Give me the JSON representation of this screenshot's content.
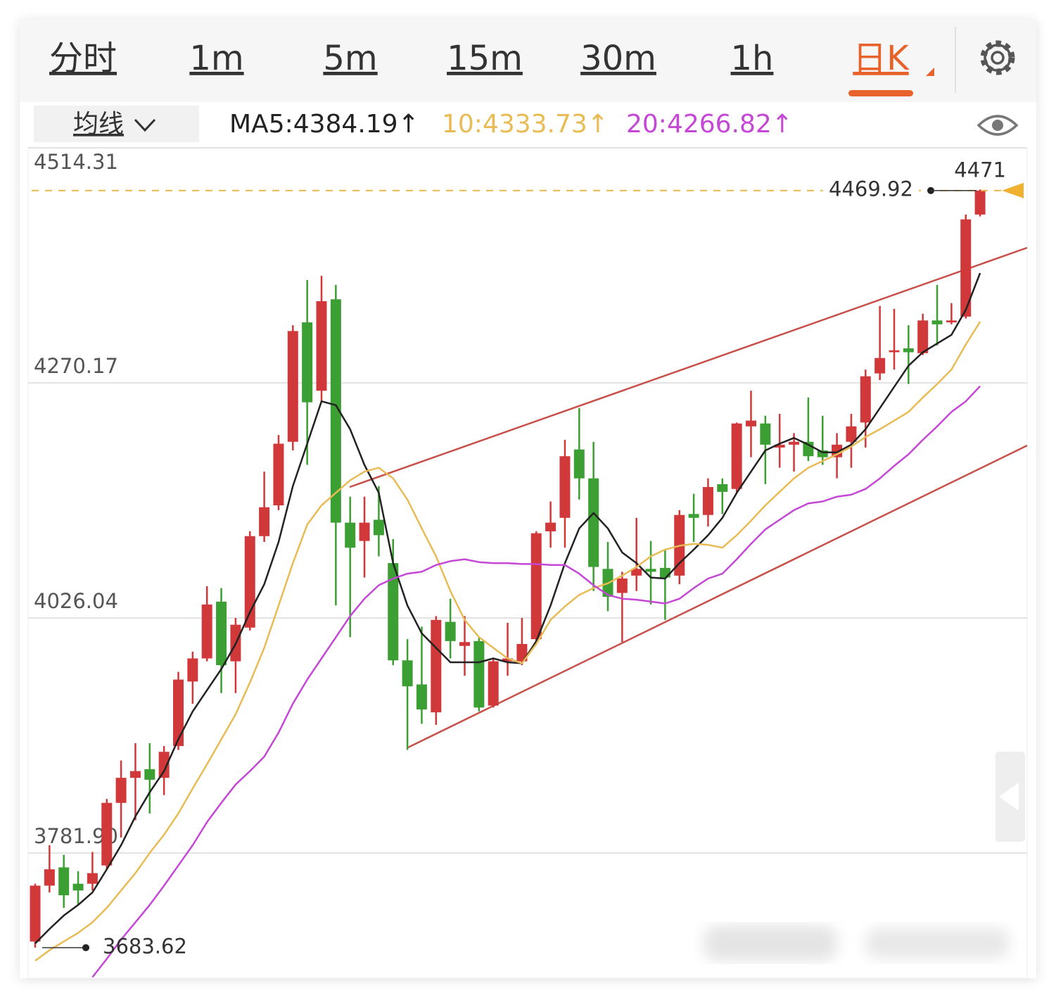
{
  "tabs": [
    "分时",
    "1m",
    "5m",
    "15m",
    "30m",
    "1h",
    "日K"
  ],
  "active_tab": 6,
  "ma_selector": "均线",
  "chart_data": {
    "type": "candlestick",
    "ylim": [
      3651.8,
      4514.31
    ],
    "yticks": [
      4514.31,
      4270.17,
      4026.04,
      {
        "value": 3781.9,
        "label": "3781.90"
      }
    ],
    "grid": true,
    "up_color": "#d0383a",
    "down_color": "#3c9f33",
    "open": [
      3690,
      3748,
      3767,
      3750,
      3750,
      3769,
      3834,
      3860,
      3869,
      3860,
      3893,
      3960,
      3984,
      4043,
      3981,
      4016,
      4111,
      4143,
      4209,
      4333,
      4262,
      4357,
      4125,
      4106,
      4128,
      4083,
      3982,
      3957,
      3928,
      4022,
      3997,
      4002,
      3935,
      3981,
      3981,
      4004,
      4116,
      4130,
      4201,
      4171,
      4077,
      4052,
      4070,
      4077,
      4078,
      4070,
      4134,
      4133,
      4165,
      4160,
      4225,
      4228,
      4203,
      4206,
      4209,
      4200,
      4193,
      4209,
      4229,
      4280,
      4302,
      4306,
      4301,
      4335,
      4333,
      4339,
      4445
    ],
    "high": [
      3750,
      3790,
      3780,
      3763,
      3783,
      3838,
      3878,
      3896,
      3896,
      3893,
      3970,
      3991,
      4059,
      4057,
      4026,
      4116,
      4178,
      4216,
      4330,
      4377,
      4381.42,
      4372,
      4152,
      4152,
      4163,
      4108,
      4004,
      4017,
      4028,
      4046,
      4028,
      4006,
      3984,
      4021,
      4026,
      4116,
      4147,
      4211,
      4244,
      4209,
      4105,
      4074,
      4130,
      4106,
      4097,
      4138,
      4155,
      4171,
      4171,
      4229,
      4262,
      4236,
      4238,
      4218,
      4255,
      4236,
      4218,
      4238,
      4284,
      4350,
      4347,
      4330,
      4342,
      4372,
      4353,
      4445,
      4471
    ],
    "low": [
      3683.62,
      3741,
      3725,
      3728,
      3743,
      3765,
      3798,
      3816,
      3823,
      3842,
      3889,
      3937,
      3981,
      3948,
      3948,
      4013,
      4105,
      4138,
      4200,
      4185,
      4251,
      4039,
      4006,
      4068,
      4090,
      3977,
      3889,
      3916,
      3915,
      3984,
      3966,
      3929,
      3933,
      3966,
      3977,
      4001,
      4099,
      4099,
      4149,
      4054,
      4033,
      4001,
      4054,
      4040,
      4024,
      4061,
      4105,
      4121,
      4134,
      4156,
      4193,
      4165,
      4182,
      4178,
      4189,
      4185,
      4171,
      4182,
      4203,
      4273,
      4284,
      4269,
      4299,
      4309,
      4331,
      4337,
      4443
    ],
    "close": [
      3748,
      3765,
      3738,
      3743,
      3761,
      3834,
      3860,
      3867,
      3858,
      3887,
      3962,
      3984,
      4040,
      3977,
      4019,
      4111,
      4141,
      4207,
      4324,
      4250,
      4355,
      4125,
      4099,
      4125,
      4112,
      3982,
      3955,
      3931,
      4024,
      4002,
      4001,
      3933,
      3981,
      3984,
      3999,
      4114,
      4125,
      4194,
      4171,
      4079,
      4048,
      4067,
      4077,
      4074,
      4068,
      4133,
      4130,
      4162,
      4157,
      4228,
      4231,
      4206,
      4206,
      4209,
      4194,
      4193,
      4206,
      4225,
      4277,
      4296,
      4304,
      4302,
      4335,
      4331,
      4335,
      4440,
      4469.92
    ],
    "series": [
      {
        "name": "MA5:4384.19↑",
        "color": "#222222",
        "values": [
          3688,
          3703,
          3717,
          3728,
          3741,
          3765,
          3790,
          3820,
          3845,
          3867,
          3900,
          3929,
          3951,
          3973,
          3999,
          4032,
          4061,
          4105,
          4163,
          4207,
          4251,
          4247,
          4222,
          4185,
          4156,
          4083,
          4039,
          4010,
          3995,
          3980,
          3980,
          3980,
          3984,
          3980,
          3979,
          4002,
          4039,
          4083,
          4119,
          4135,
          4119,
          4094,
          4083,
          4068,
          4067,
          4083,
          4097,
          4112,
          4130,
          4156,
          4178,
          4200,
          4207,
          4213,
          4206,
          4198,
          4198,
          4206,
          4222,
          4244,
          4266,
          4288,
          4302,
          4311,
          4320,
          4346,
          4384.19
        ]
      },
      {
        "name": "10:4333.73↑",
        "color": "#e9bb55",
        "values": [
          3670,
          3681,
          3690,
          3699,
          3710,
          3725,
          3743,
          3761,
          3782,
          3801,
          3823,
          3849,
          3874,
          3900,
          3926,
          3959,
          3995,
          4039,
          4083,
          4123,
          4143,
          4156,
          4169,
          4178,
          4182,
          4171,
          4149,
          4119,
          4090,
          4054,
          4024,
          4006,
          3995,
          3984,
          3979,
          3999,
          4024,
          4038,
          4050,
          4057,
          4062,
          4070,
          4079,
          4090,
          4097,
          4101,
          4103,
          4102,
          4099,
          4112,
          4127,
          4143,
          4157,
          4171,
          4182,
          4189,
          4196,
          4204,
          4214,
          4222,
          4231,
          4240,
          4255,
          4269,
          4284,
          4310,
          4333.73
        ]
      },
      {
        "name": "20:4266.82↑",
        "color": "#c447d6",
        "values": [
          null,
          null,
          null,
          null,
          3653,
          3672,
          3692,
          3710,
          3728,
          3748,
          3769,
          3790,
          3814,
          3834,
          3853,
          3867,
          3882,
          3907,
          3937,
          3962,
          3984,
          4006,
          4028,
          4046,
          4060,
          4067,
          4072,
          4074,
          4081,
          4085,
          4087,
          4084,
          4083,
          4083,
          4082,
          4082,
          4081,
          4081,
          4072,
          4060,
          4050,
          4046,
          4045,
          4043,
          4041,
          4046,
          4057,
          4067,
          4072,
          4087,
          4103,
          4118,
          4128,
          4138,
          4145,
          4147,
          4152,
          4154,
          4160,
          4171,
          4184,
          4196,
          4211,
          4225,
          4240,
          4251,
          4266.82
        ]
      }
    ]
  }
}
